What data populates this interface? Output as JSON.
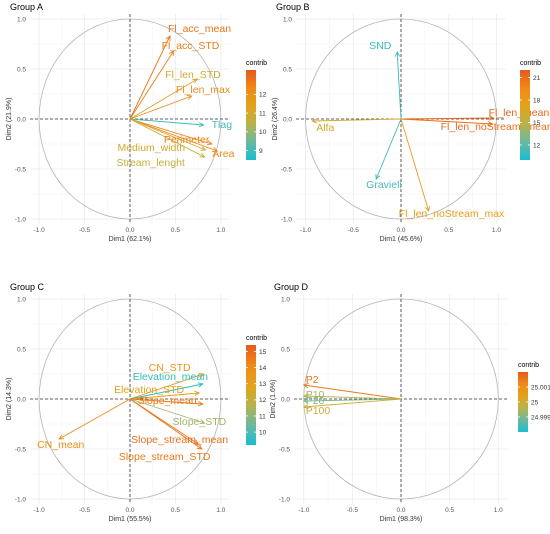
{
  "figure": {
    "background": "#ffffff",
    "gradient": [
      "#17becf",
      "#6bb8a0",
      "#b8b24a",
      "#e3a21a",
      "#ef8a17",
      "#e55a1c"
    ]
  },
  "chart_data": [
    {
      "type": "scatter",
      "title": "Group A",
      "xlabel": "Dim1 (62.1%)",
      "ylabel": "Dim2 (21.9%)",
      "xlim": [
        -1.1,
        1.1
      ],
      "ylim": [
        -1.05,
        1.05
      ],
      "xticks": [
        -1.0,
        -0.5,
        0.0,
        0.5,
        1.0
      ],
      "yticks": [
        -1.0,
        -0.5,
        0.0,
        0.5,
        1.0
      ],
      "legend": {
        "title": "contrib",
        "min": 8.5,
        "max": 13.3,
        "ticks": [
          9,
          10,
          11,
          12
        ]
      },
      "variables": [
        {
          "name": "Fl_acc_mean",
          "x": 0.44,
          "y": 0.83,
          "contrib": 12.8
        },
        {
          "name": "Fl_acc_STD",
          "x": 0.48,
          "y": 0.68,
          "contrib": 12.6
        },
        {
          "name": "Fl_len_STD",
          "x": 0.74,
          "y": 0.4,
          "contrib": 11.0
        },
        {
          "name": "Fl_len_max",
          "x": 0.68,
          "y": 0.23,
          "contrib": 12.3
        },
        {
          "name": "Tlag",
          "x": 0.81,
          "y": -0.06,
          "contrib": 9.0
        },
        {
          "name": "Perimeter",
          "x": 0.9,
          "y": -0.25,
          "contrib": 12.5
        },
        {
          "name": "Area",
          "x": 0.96,
          "y": -0.32,
          "contrib": 12.3
        },
        {
          "name": "Medium_width",
          "x": 0.83,
          "y": -0.31,
          "contrib": 11.0
        },
        {
          "name": "Stream_lenght",
          "x": 0.82,
          "y": -0.38,
          "contrib": 10.8
        }
      ]
    },
    {
      "type": "scatter",
      "title": "Group B",
      "xlabel": "Dim1 (45.6%)",
      "ylabel": "Dim2 (26.4%)",
      "xlim": [
        -1.1,
        1.1
      ],
      "ylim": [
        -1.05,
        1.05
      ],
      "xticks": [
        -1.0,
        -0.5,
        0.0,
        0.5,
        1.0
      ],
      "yticks": [
        -1.0,
        -0.5,
        0.0,
        0.5,
        1.0
      ],
      "legend": {
        "title": "contrib",
        "min": 10.0,
        "max": 22.0,
        "ticks": [
          12,
          15,
          18,
          21
        ]
      },
      "variables": [
        {
          "name": "SND",
          "x": -0.04,
          "y": 0.67,
          "contrib": 11.0
        },
        {
          "name": "Fl_len_mean",
          "x": 0.97,
          "y": 0.01,
          "contrib": 21.5
        },
        {
          "name": "Alfa",
          "x": -0.93,
          "y": -0.02,
          "contrib": 16.5
        },
        {
          "name": "Fl_len_noStream_mean",
          "x": 0.96,
          "y": -0.05,
          "contrib": 21.0
        },
        {
          "name": "Gravieli",
          "x": -0.26,
          "y": -0.6,
          "contrib": 11.3
        },
        {
          "name": "Fl_len_noStream_max",
          "x": 0.29,
          "y": -0.92,
          "contrib": 17.8
        }
      ]
    },
    {
      "type": "scatter",
      "title": "Group C",
      "xlabel": "Dim1 (55.5%)",
      "ylabel": "Dim2 (14.3%)",
      "xlim": [
        -1.1,
        1.1
      ],
      "ylim": [
        -1.05,
        1.05
      ],
      "xticks": [
        -1.0,
        -0.5,
        0.0,
        0.5,
        1.0
      ],
      "yticks": [
        -1.0,
        -0.5,
        0.0,
        0.5,
        1.0
      ],
      "legend": {
        "title": "contrib",
        "min": 9.2,
        "max": 15.4,
        "ticks": [
          10,
          11,
          12,
          13,
          14,
          15
        ]
      },
      "variables": [
        {
          "name": "CN_STD",
          "x": 0.81,
          "y": 0.25,
          "contrib": 13.4
        },
        {
          "name": "Elevation_mean",
          "x": 0.8,
          "y": 0.15,
          "contrib": 9.6
        },
        {
          "name": "Elevation_STD",
          "x": 0.76,
          "y": 0.06,
          "contrib": 13.0
        },
        {
          "name": "Slope_mean",
          "x": 0.8,
          "y": -0.05,
          "contrib": 14.6
        },
        {
          "name": "Slope_STD",
          "x": 0.82,
          "y": -0.24,
          "contrib": 11.3
        },
        {
          "name": "CN_mean",
          "x": -0.78,
          "y": -0.4,
          "contrib": 14.0
        },
        {
          "name": "Slope_stream_mean",
          "x": 0.75,
          "y": -0.45,
          "contrib": 14.8
        },
        {
          "name": "Slope_stream_STD",
          "x": 0.79,
          "y": -0.5,
          "contrib": 14.6
        }
      ]
    },
    {
      "type": "scatter",
      "title": "Group D",
      "xlabel": "Dim1 (98.3%)",
      "ylabel": "Dim2 (1.6%)",
      "xlim": [
        -1.1,
        1.1
      ],
      "ylim": [
        -1.05,
        1.05
      ],
      "xticks": [
        -1.0,
        -0.5,
        0.0,
        0.5,
        1.0
      ],
      "yticks": [
        -1.0,
        -0.5,
        0.0,
        0.5,
        1.0
      ],
      "legend": {
        "title": "contrib",
        "min": 24.998,
        "max": 25.002,
        "ticks": [
          24.999,
          25.0,
          25.001
        ]
      },
      "variables": [
        {
          "name": "P2",
          "x": -1.0,
          "y": 0.14,
          "contrib": 25.0015
        },
        {
          "name": "P10",
          "x": -1.0,
          "y": 0.03,
          "contrib": 24.9995
        },
        {
          "name": "P20",
          "x": -1.0,
          "y": -0.02,
          "contrib": 24.999
        },
        {
          "name": "P100",
          "x": -1.0,
          "y": -0.08,
          "contrib": 25.0
        }
      ]
    }
  ]
}
